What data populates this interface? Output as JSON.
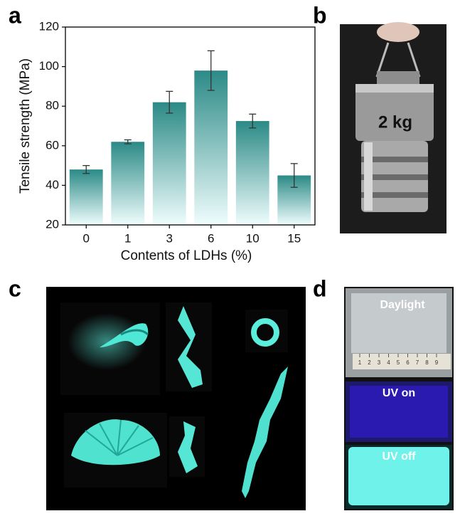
{
  "chart_data": {
    "type": "bar",
    "xlabel": "Contents of LDHs (%)",
    "ylabel": "Tensile strength (MPa)",
    "categories": [
      "0",
      "1",
      "3",
      "6",
      "10",
      "15"
    ],
    "values": [
      48,
      62,
      82,
      98,
      72.5,
      45
    ],
    "errors": [
      2,
      1,
      5.5,
      10,
      3.5,
      6
    ],
    "color": "#2b8a86",
    "ylim": [
      20,
      120
    ],
    "yticks": [
      20,
      40,
      60,
      80,
      100,
      120
    ]
  },
  "figure": {
    "panels": [
      "a",
      "b",
      "c",
      "d"
    ],
    "weight_label": "2 kg",
    "daylight_label": "Daylight",
    "uv_on_label": "UV on",
    "uv_off_label": "UV off",
    "ruler_marks": [
      "1",
      "2",
      "3",
      "4",
      "5",
      "6",
      "7",
      "8",
      "9"
    ]
  }
}
